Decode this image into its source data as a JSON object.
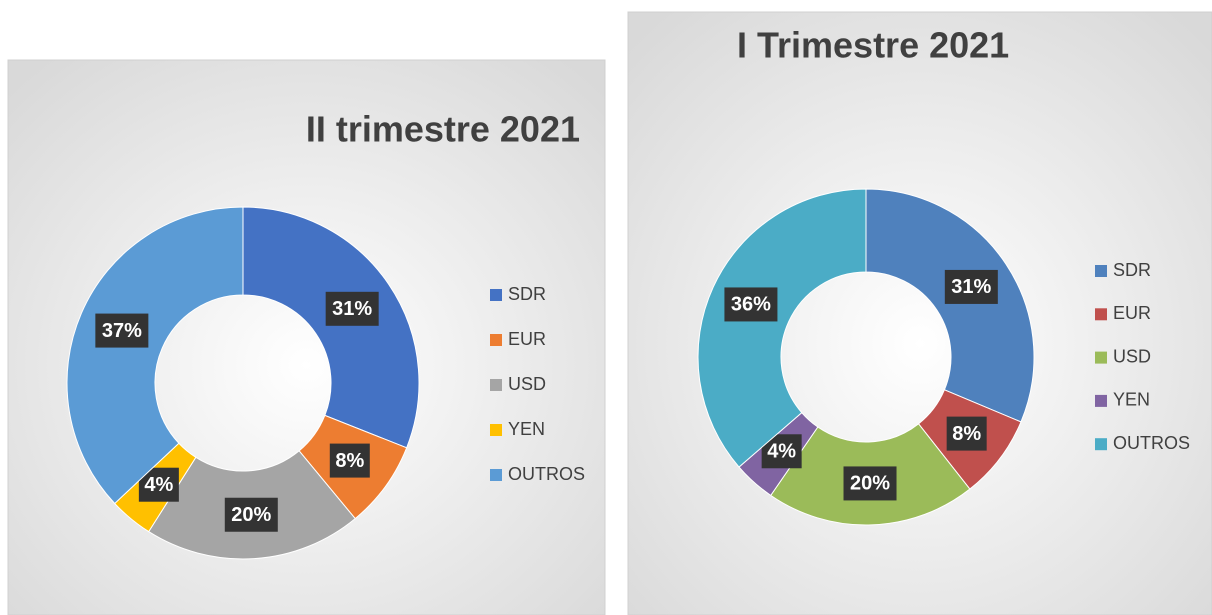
{
  "chart_data": [
    {
      "type": "donut",
      "title": "II trimestre 2021",
      "categories": [
        "SDR",
        "EUR",
        "USD",
        "YEN",
        "OUTROS"
      ],
      "values": [
        31,
        8,
        20,
        4,
        37
      ],
      "value_labels": [
        "31%",
        "8%",
        "20%",
        "4%",
        "37%"
      ],
      "colors": [
        "#4472c4",
        "#ed7d31",
        "#a5a5a5",
        "#ffc000",
        "#5b9bd5"
      ],
      "legend": "right"
    },
    {
      "type": "donut",
      "title": "I Trimestre 2021",
      "categories": [
        "SDR",
        "EUR",
        "USD",
        "YEN",
        "OUTROS"
      ],
      "values": [
        31,
        8,
        20,
        4,
        36
      ],
      "value_labels": [
        "31%",
        "8%",
        "20%",
        "4%",
        "36%"
      ],
      "colors": [
        "#4f81bd",
        "#c0504d",
        "#9bbb59",
        "#8064a2",
        "#4bacc6"
      ],
      "legend": "right"
    }
  ]
}
